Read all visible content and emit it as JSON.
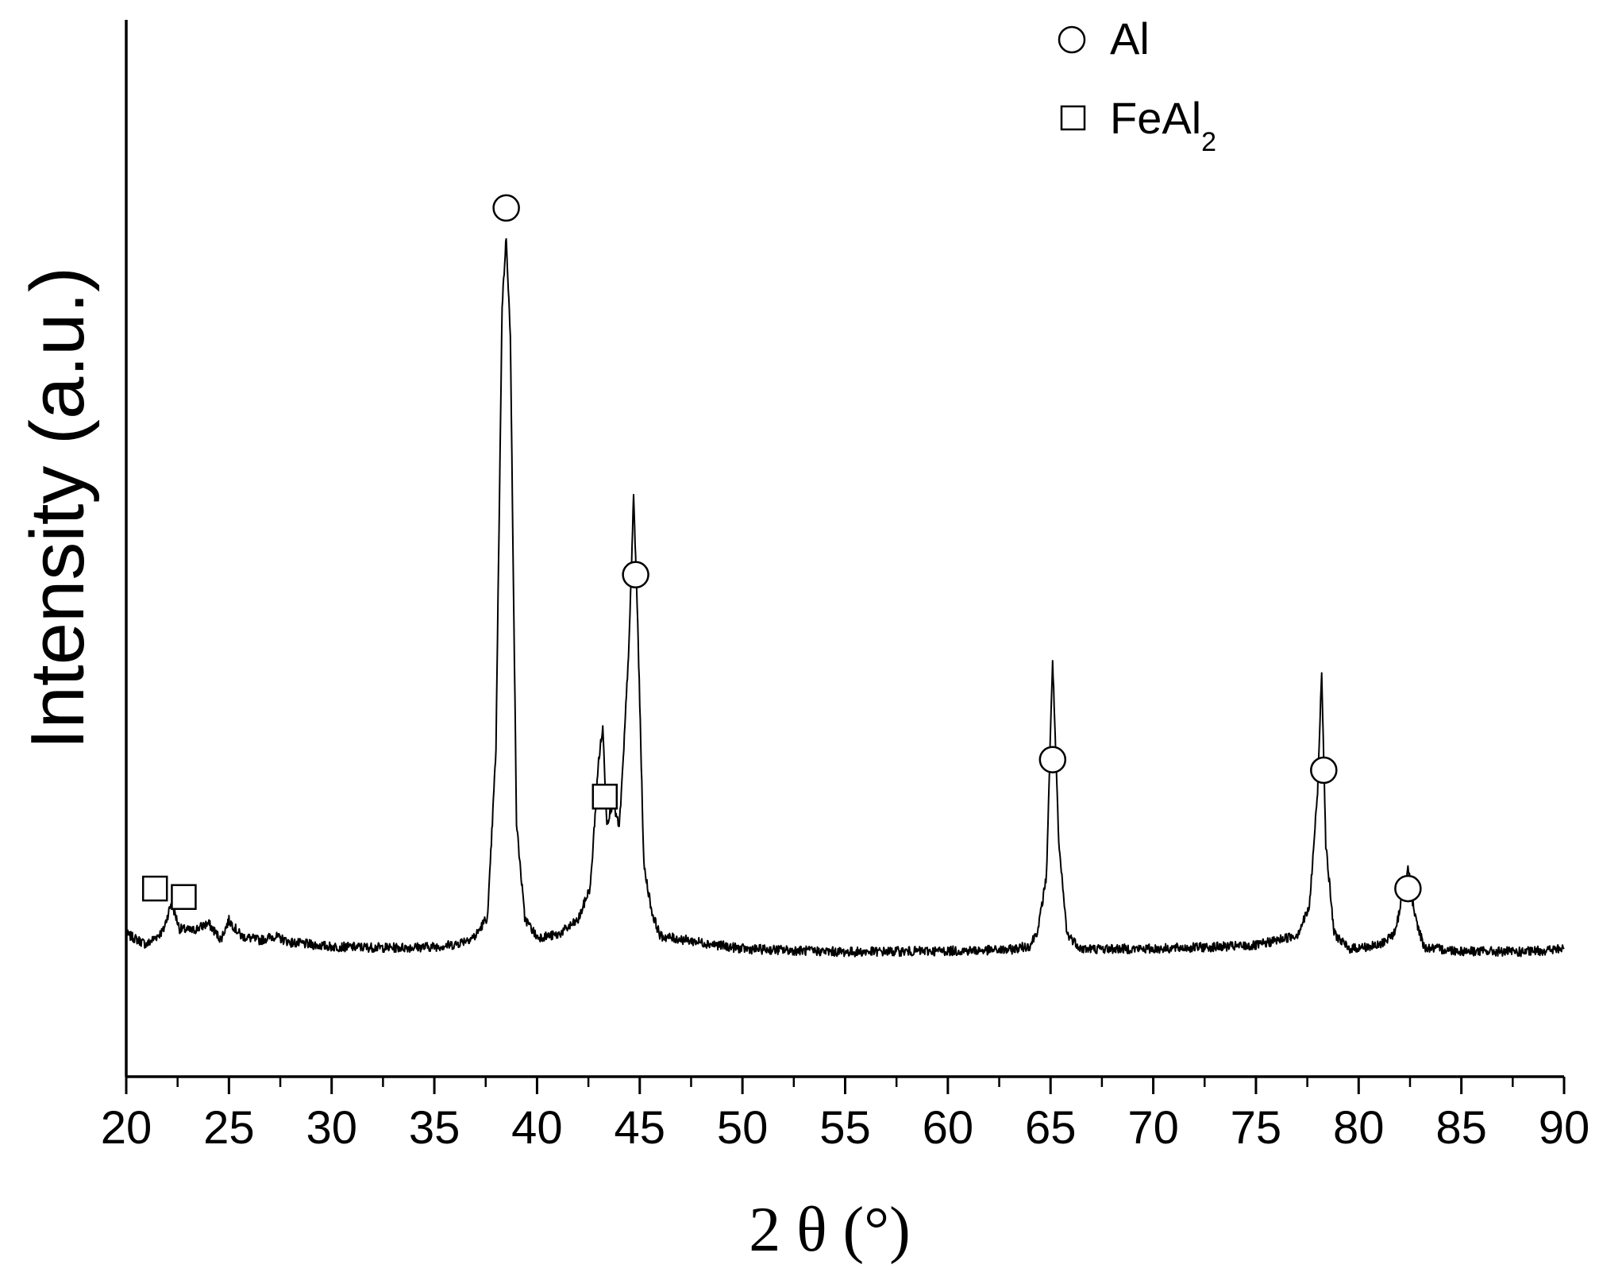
{
  "chart_data": {
    "type": "line",
    "title": "",
    "xlabel": "2 θ (°)",
    "ylabel": "Intensity (a.u.)",
    "xlim": [
      20,
      90
    ],
    "ylim": [
      0,
      100
    ],
    "x_ticks": [
      20,
      25,
      30,
      35,
      40,
      45,
      50,
      55,
      60,
      65,
      70,
      75,
      80,
      85,
      90
    ],
    "x_tick_labels": [
      "20",
      "25",
      "30",
      "35",
      "40",
      "45",
      "50",
      "55",
      "60",
      "65",
      "70",
      "75",
      "80",
      "85",
      "90"
    ],
    "y_ticks_shown": false,
    "grid": false,
    "line_color": "#000000",
    "legend": {
      "placement": "top-right",
      "entries": [
        {
          "marker": "circle",
          "label": "Al",
          "subscript": ""
        },
        {
          "marker": "square",
          "label": "FeAl",
          "subscript": "2"
        }
      ]
    },
    "series": [
      {
        "x": [
          20,
          21,
          21.8,
          22.2,
          22.6,
          23.2,
          24,
          24.6,
          25,
          25.6,
          26.5,
          27.2,
          28,
          30,
          33,
          35,
          36,
          37,
          37.6,
          38,
          38.3,
          38.5,
          38.7,
          39,
          39.4,
          40,
          41,
          42,
          42.6,
          43,
          43.2,
          43.4,
          43.7,
          44,
          44.2,
          44.5,
          44.7,
          44.9,
          45.2,
          45.6,
          46,
          47,
          50,
          55,
          60,
          63,
          64,
          64.4,
          64.8,
          65.1,
          65.4,
          65.8,
          66.5,
          70,
          75,
          77,
          77.6,
          78,
          78.2,
          78.4,
          78.8,
          79.5,
          81,
          81.8,
          82.1,
          82.4,
          82.7,
          83.2,
          85,
          88,
          90
        ],
        "y": [
          13.5,
          12.5,
          13.8,
          16.5,
          14,
          13.8,
          14.5,
          13,
          14.8,
          13.3,
          12.9,
          13.3,
          12.7,
          12.3,
          12.2,
          12.3,
          12.5,
          13.3,
          15.2,
          31,
          73,
          79.5,
          70,
          24,
          15,
          13.2,
          13.4,
          14.8,
          18,
          30,
          33,
          24,
          26,
          23.5,
          30,
          42,
          55,
          43,
          20,
          15.5,
          13.3,
          13,
          12.1,
          11.8,
          11.9,
          12,
          12.4,
          14,
          19,
          39.5,
          22,
          13.5,
          12.1,
          12.1,
          12.4,
          13.4,
          16,
          27,
          38.5,
          22,
          13.6,
          12.1,
          12.4,
          13.7,
          17,
          20,
          15.4,
          12.2,
          11.9,
          11.8,
          12.1
        ]
      }
    ],
    "annotations": [
      {
        "marker": "circle",
        "phase": "Al",
        "x": 38.5,
        "y": 82.2
      },
      {
        "marker": "circle",
        "phase": "Al",
        "x": 44.8,
        "y": 47.5
      },
      {
        "marker": "circle",
        "phase": "Al",
        "x": 65.1,
        "y": 30.0
      },
      {
        "marker": "circle",
        "phase": "Al",
        "x": 78.3,
        "y": 29.0
      },
      {
        "marker": "circle",
        "phase": "Al",
        "x": 82.4,
        "y": 17.8
      },
      {
        "marker": "square",
        "phase": "FeAl2",
        "x": 21.4,
        "y": 17.8
      },
      {
        "marker": "square",
        "phase": "FeAl2",
        "x": 22.8,
        "y": 17.0
      },
      {
        "marker": "square",
        "phase": "FeAl2",
        "x": 43.3,
        "y": 26.5
      }
    ]
  }
}
